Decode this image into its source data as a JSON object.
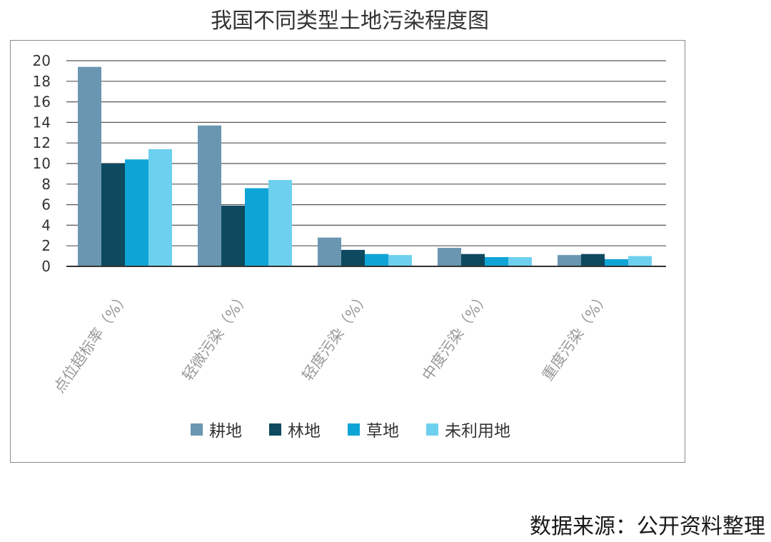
{
  "chart_data": {
    "type": "bar",
    "title": "我国不同类型土地污染程度图",
    "categories": [
      "点位超标率（%）",
      "轻微污染（%）",
      "轻度污染（%）",
      "中度污染（%）",
      "重度污染（%）"
    ],
    "series": [
      {
        "name": "耕地",
        "values": [
          19.4,
          13.7,
          2.8,
          1.8,
          1.1
        ]
      },
      {
        "name": "林地",
        "values": [
          10.0,
          5.9,
          1.6,
          1.2,
          1.2
        ]
      },
      {
        "name": "草地",
        "values": [
          10.4,
          7.6,
          1.2,
          0.9,
          0.7
        ]
      },
      {
        "name": "未利用地",
        "values": [
          11.4,
          8.4,
          1.1,
          0.9,
          1.0
        ]
      }
    ],
    "ylim": [
      0,
      20
    ],
    "yticks": [
      0,
      2,
      4,
      6,
      8,
      10,
      12,
      14,
      16,
      18,
      20
    ],
    "xlabel": "",
    "ylabel": "",
    "grid": true,
    "legend_position": "bottom-center",
    "colors": [
      "#6a96b1",
      "#0d4a5f",
      "#0ea5d6",
      "#6ed0ef"
    ]
  },
  "source_note": "数据来源：公开资料整理"
}
